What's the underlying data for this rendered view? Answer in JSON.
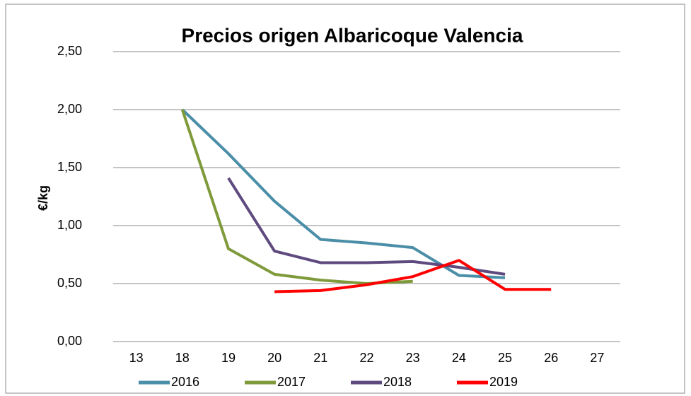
{
  "chart_data": {
    "type": "line",
    "title": "Precios origen Albaricoque Valencia",
    "y_label": "€/kg",
    "categories": [
      "13",
      "18",
      "19",
      "20",
      "21",
      "22",
      "23",
      "24",
      "25",
      "26",
      "27"
    ],
    "series": [
      {
        "name": "2016",
        "color": "#4a8ea8",
        "values": [
          null,
          2.0,
          1.62,
          1.21,
          0.88,
          0.85,
          0.81,
          0.57,
          0.55,
          null,
          null
        ]
      },
      {
        "name": "2017",
        "color": "#7f9a3a",
        "values": [
          null,
          2.0,
          0.8,
          0.58,
          0.53,
          0.5,
          0.52,
          null,
          null,
          null,
          null
        ]
      },
      {
        "name": "2018",
        "color": "#5e4a7e",
        "values": [
          null,
          null,
          1.41,
          0.78,
          0.68,
          0.68,
          0.69,
          0.64,
          0.58,
          null,
          null
        ]
      },
      {
        "name": "2019",
        "color": "#ff0000",
        "values": [
          null,
          null,
          null,
          0.43,
          0.44,
          0.49,
          0.56,
          0.7,
          0.45,
          0.45,
          null
        ]
      }
    ],
    "ylim": [
      0,
      2.5
    ],
    "yticks": [
      {
        "value": 0,
        "label": "0,00"
      },
      {
        "value": 0.5,
        "label": "0,50"
      },
      {
        "value": 1,
        "label": "1,00"
      },
      {
        "value": 1.5,
        "label": "1,50"
      },
      {
        "value": 2,
        "label": "2,00"
      },
      {
        "value": 2.5,
        "label": "2,50"
      }
    ],
    "grid": true,
    "legend": "bottom"
  }
}
